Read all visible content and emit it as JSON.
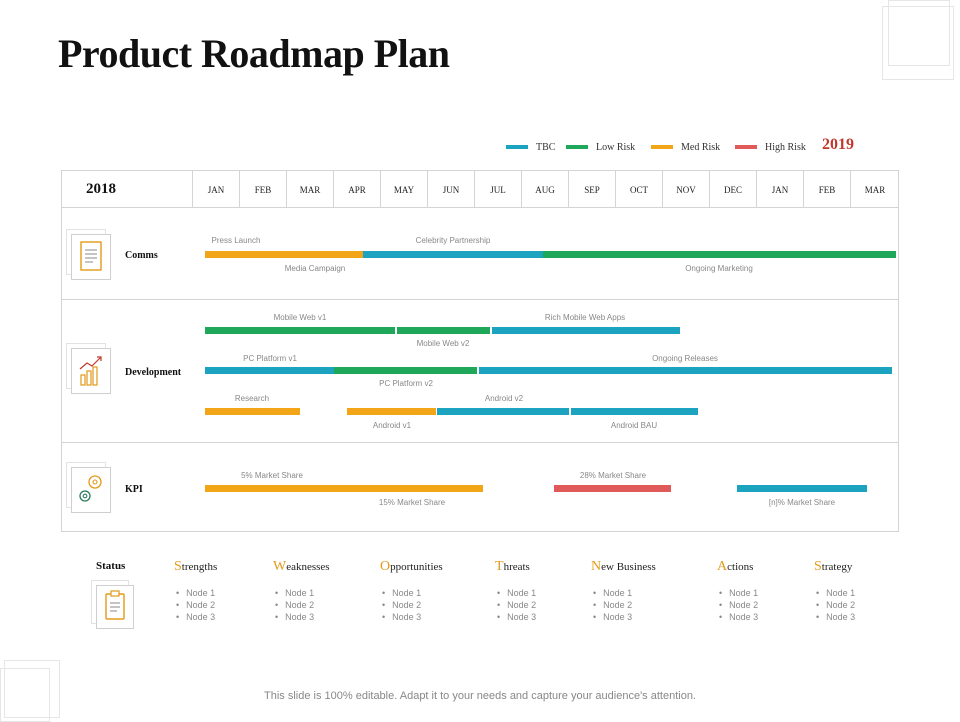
{
  "title": "Product Roadmap Plan",
  "legend": [
    {
      "label": "TBC",
      "color": "#1ba3c0"
    },
    {
      "label": "Low Risk",
      "color": "#1fa85a"
    },
    {
      "label": "Med Risk",
      "color": "#f2a516"
    },
    {
      "label": "High Risk",
      "color": "#e05a5a"
    }
  ],
  "year_start": "2018",
  "year_end": "2019",
  "months": [
    "JAN",
    "FEB",
    "MAR",
    "APR",
    "MAY",
    "JUN",
    "JUL",
    "AUG",
    "SEP",
    "OCT",
    "NOV",
    "DEC",
    "JAN",
    "FEB",
    "MAR"
  ],
  "rows": {
    "comms": {
      "label": "Comms",
      "press_launch": "Press Launch",
      "celebrity": "Celebrity Partnership",
      "media_campaign": "Media Campaign",
      "ongoing_marketing": "Ongoing Marketing"
    },
    "development": {
      "label": "Development",
      "mobile_web_v1": "Mobile Web v1",
      "rich_mobile": "Rich Mobile Web Apps",
      "mobile_web_v2": "Mobile Web v2",
      "pc_v1": "PC Platform v1",
      "ongoing_releases": "Ongoing Releases",
      "pc_v2": "PC Platform v2",
      "research": "Research",
      "android_v2": "Android v2",
      "android_v1": "Android v1",
      "android_bau": "Android BAU"
    },
    "kpi": {
      "label": "KPI",
      "ms5": "5% Market Share",
      "ms28": "28% Market Share",
      "ms15": "15% Market Share",
      "msn": "[n]% Market Share"
    }
  },
  "status": {
    "label": "Status",
    "columns": [
      {
        "first": "S",
        "rest": "trengths",
        "nodes": [
          "Node 1",
          "Node 2",
          "Node 3"
        ]
      },
      {
        "first": "W",
        "rest": "eaknesses",
        "nodes": [
          "Node 1",
          "Node 2",
          "Node 3"
        ]
      },
      {
        "first": "O",
        "rest": "pportunities",
        "nodes": [
          "Node 1",
          "Node 2",
          "Node 3"
        ]
      },
      {
        "first": "T",
        "rest": "hreats",
        "nodes": [
          "Node 1",
          "Node 2",
          "Node 3"
        ]
      },
      {
        "first": "N",
        "rest": "ew Business",
        "nodes": [
          "Node 1",
          "Node 2",
          "Node 3"
        ]
      },
      {
        "first": "A",
        "rest": "ctions",
        "nodes": [
          "Node 1",
          "Node 2",
          "Node 3"
        ]
      },
      {
        "first": "S",
        "rest": "trategy",
        "nodes": [
          "Node 1",
          "Node 2",
          "Node 3"
        ]
      }
    ]
  },
  "footer": "This slide is 100% editable. Adapt it to your needs and capture your audience's attention."
}
